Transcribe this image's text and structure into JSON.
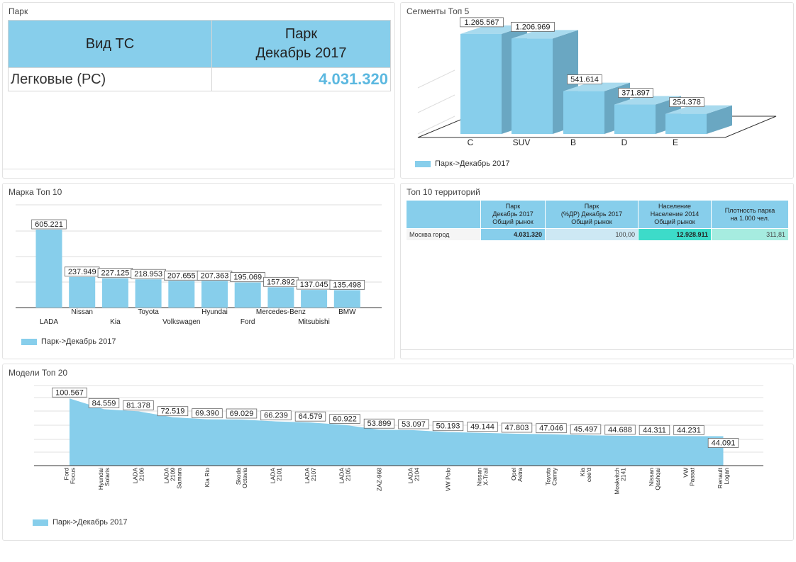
{
  "park": {
    "title": "Парк",
    "header_vehicle": "Вид ТС",
    "header_park_line1": "Парк",
    "header_park_line2": "Декабрь 2017",
    "row_label": "Легковые (РС)",
    "row_value": "4.031.320"
  },
  "segments": {
    "title": "Сегменты Топ 5",
    "legend": "Парк->Декабрь 2017"
  },
  "brands": {
    "title": "Марка Топ 10",
    "legend": "Парк->Декабрь 2017"
  },
  "territories": {
    "title": "Топ 10 территорий",
    "headers": [
      "",
      [
        "Парк",
        "Декабрь 2017",
        "Общий рынок"
      ],
      [
        "Парк",
        "(%ДР) Декабрь 2017",
        "Общий рынок"
      ],
      [
        "Население",
        "Население 2014",
        "Общий рынок"
      ],
      [
        "Плотность парка",
        "на 1.000 чел."
      ]
    ],
    "row": {
      "name": "Москва город",
      "park": "4.031.320",
      "share": "100,00",
      "population": "12.928.911",
      "density": "311,81"
    }
  },
  "models": {
    "title": "Модели Топ 20",
    "legend": "Парк->Декабрь 2017"
  },
  "colors": {
    "bar": "#87ceeb",
    "bar_side": "#6aa7c2",
    "bar_top": "#a8daee",
    "value_blue": "#5bb8e0",
    "teal": "#3ddbc9",
    "mint": "#a6ece0"
  },
  "chart_data": [
    {
      "type": "bar",
      "title": "Сегменты Топ 5",
      "categories": [
        "C",
        "SUV",
        "B",
        "D",
        "E"
      ],
      "values": [
        1265567,
        1206969,
        541614,
        371897,
        254378
      ],
      "value_labels": [
        "1.265.567",
        "1.206.969",
        "541.614",
        "371.897",
        "254.378"
      ],
      "legend": "Парк->Декабрь 2017",
      "three_d": true
    },
    {
      "type": "bar",
      "title": "Марка Топ 10",
      "categories": [
        "LADA",
        "Nissan",
        "Kia",
        "Toyota",
        "Volkswagen",
        "Hyundai",
        "Ford",
        "Mercedes-Benz",
        "Mitsubishi",
        "BMW"
      ],
      "values": [
        605221,
        237949,
        227125,
        218953,
        207655,
        207363,
        195069,
        157892,
        137045,
        135498
      ],
      "value_labels": [
        "605.221",
        "237.949",
        "227.125",
        "218.953",
        "207.655",
        "207.363",
        "195.069",
        "157.892",
        "137.045",
        "135.498"
      ],
      "legend": "Парк->Декабрь 2017"
    },
    {
      "type": "area",
      "title": "Модели Топ 20",
      "categories": [
        [
          "Ford",
          "Focus"
        ],
        [
          "Hyundai",
          "Solaris"
        ],
        [
          "LADA",
          "2106"
        ],
        [
          "LADA",
          "2109",
          "Samara"
        ],
        [
          "Kia Rio"
        ],
        [
          "Skoda",
          "Octavia"
        ],
        [
          "LADA",
          "2101"
        ],
        [
          "LADA",
          "2107"
        ],
        [
          "LADA",
          "2105"
        ],
        [
          "ZAZ-968"
        ],
        [
          "LADA",
          "2104"
        ],
        [
          "VW Polo"
        ],
        [
          "Nissan",
          "X-Trail"
        ],
        [
          "Opel",
          "Astra"
        ],
        [
          "Toyota",
          "Camry"
        ],
        [
          "Kia",
          "cee'd"
        ],
        [
          "Moskvitch",
          "2141"
        ],
        [
          "Nissan",
          "Qashqai"
        ],
        [
          "VW",
          "Passat"
        ],
        [
          "Renault",
          "Logan"
        ]
      ],
      "values": [
        100567,
        84559,
        81378,
        72519,
        69390,
        69029,
        66239,
        64579,
        60922,
        53899,
        53097,
        50193,
        49144,
        47803,
        47046,
        45497,
        44688,
        44311,
        44231,
        44091
      ],
      "value_labels": [
        "100.567",
        "84.559",
        "81.378",
        "72.519",
        "69.390",
        "69.029",
        "66.239",
        "64.579",
        "60.922",
        "53.899",
        "53.097",
        "50.193",
        "49.144",
        "47.803",
        "47.046",
        "45.497",
        "44.688",
        "44.311",
        "44.231",
        "44.091"
      ],
      "legend": "Парк->Декабрь 2017"
    }
  ]
}
